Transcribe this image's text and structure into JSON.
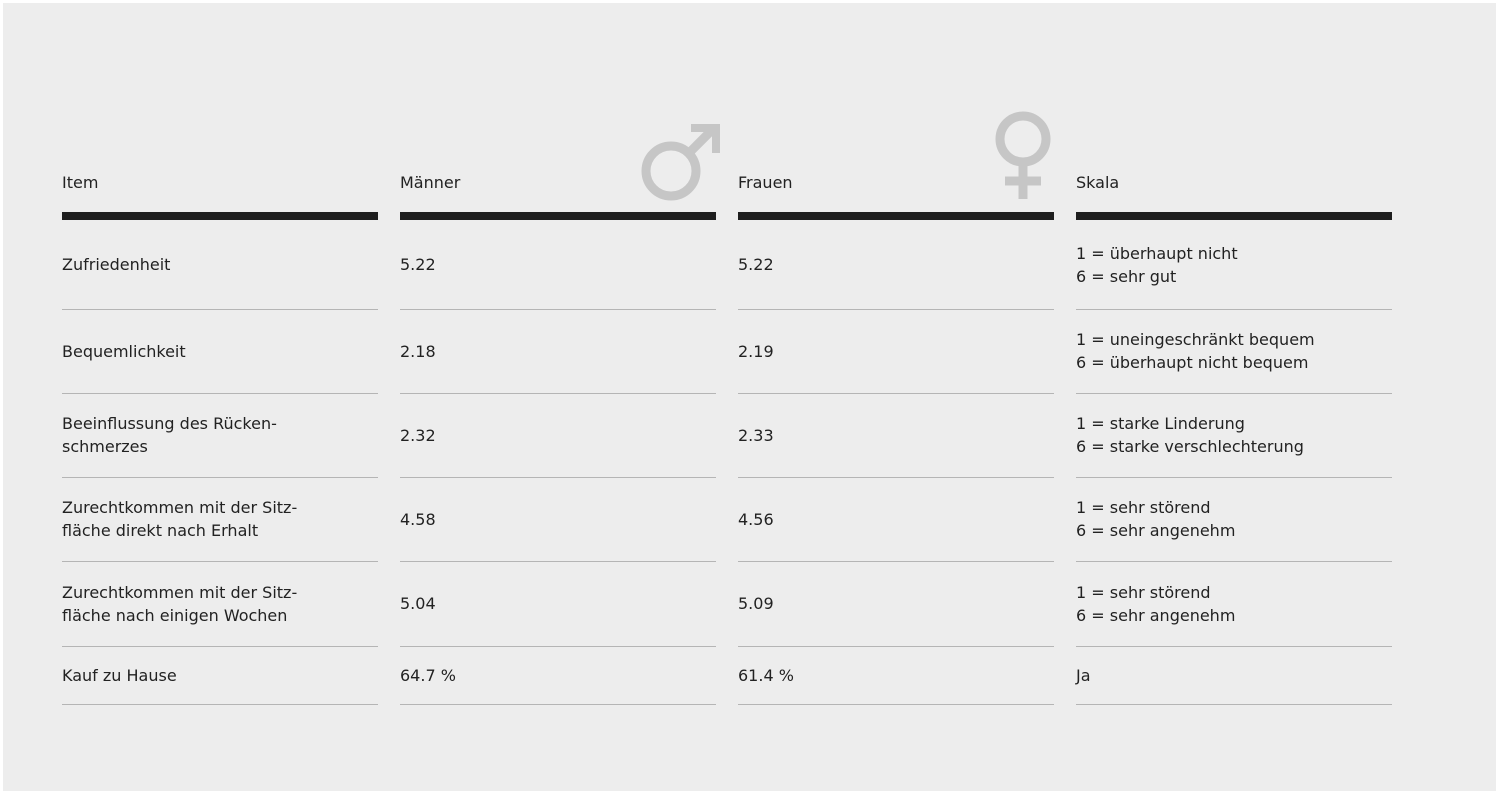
{
  "table": {
    "headers": [
      "Item",
      "Männer",
      "Frauen",
      "Skala"
    ],
    "rows": [
      [
        [
          "Zufriedenheit"
        ],
        [
          "5.22"
        ],
        [
          "5.22"
        ],
        [
          "1 = überhaupt nicht",
          "6 = sehr gut"
        ]
      ],
      [
        [
          "Bequemlichkeit"
        ],
        [
          "2.18"
        ],
        [
          "2.19"
        ],
        [
          "1 = uneingeschränkt bequem",
          "6 = überhaupt nicht bequem"
        ]
      ],
      [
        [
          "Beeinflussung des Rücken-",
          "schmerzes"
        ],
        [
          "2.32"
        ],
        [
          "2.33"
        ],
        [
          "1 = starke Linderung",
          "6 = starke verschlechterung"
        ]
      ],
      [
        [
          "Zurechtkommen mit der Sitz-",
          "fläche direkt nach Erhalt"
        ],
        [
          "4.58"
        ],
        [
          "4.56"
        ],
        [
          "1 = sehr störend",
          "6 = sehr angenehm"
        ]
      ],
      [
        [
          "Zurechtkommen mit der Sitz-",
          "fläche nach einigen Wochen"
        ],
        [
          "5.04"
        ],
        [
          "5.09"
        ],
        [
          "1 = sehr störend",
          "6 = sehr angenehm"
        ]
      ],
      [
        [
          "Kauf zu Hause"
        ],
        [
          "64.7 %"
        ],
        [
          "61.4 %"
        ],
        [
          "Ja"
        ]
      ]
    ]
  }
}
